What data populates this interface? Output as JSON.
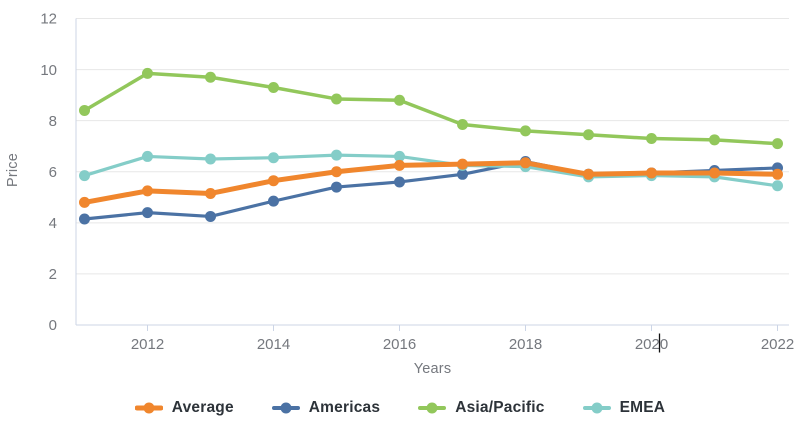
{
  "chart_data": {
    "type": "line",
    "title": "",
    "xlabel": "Years",
    "ylabel": "Price",
    "x": [
      2011,
      2012,
      2013,
      2014,
      2015,
      2016,
      2017,
      2018,
      2019,
      2020,
      2021,
      2022
    ],
    "x_tick_labels": [
      "2012",
      "2014",
      "2016",
      "2018",
      "2020",
      "2022"
    ],
    "yticks": [
      0,
      2,
      4,
      6,
      8,
      10,
      12
    ],
    "ylim": [
      0,
      12
    ],
    "grid": "horizontal",
    "legend_position": "bottom",
    "series": [
      {
        "name": "Average",
        "color": "#f0862d",
        "line_width": 5,
        "values": [
          4.8,
          5.25,
          5.15,
          5.65,
          6.0,
          6.25,
          6.3,
          6.35,
          5.9,
          5.95,
          5.95,
          5.9
        ]
      },
      {
        "name": "Americas",
        "color": "#4b72a4",
        "line_width": 3.2,
        "values": [
          4.15,
          4.4,
          4.25,
          4.85,
          5.4,
          5.6,
          5.9,
          6.4,
          5.9,
          5.95,
          6.05,
          6.15
        ]
      },
      {
        "name": "Asia/Pacific",
        "color": "#92c75b",
        "line_width": 3.5,
        "values": [
          8.4,
          9.85,
          9.7,
          9.3,
          8.85,
          8.8,
          7.85,
          7.6,
          7.45,
          7.3,
          7.25,
          7.1
        ]
      },
      {
        "name": "EMEA",
        "color": "#84cdc8",
        "line_width": 3.2,
        "values": [
          5.85,
          6.6,
          6.5,
          6.55,
          6.65,
          6.6,
          6.25,
          6.2,
          5.8,
          5.85,
          5.8,
          5.45
        ]
      }
    ],
    "text_cursor": {
      "at_tick_label": "2020"
    }
  },
  "colors": {
    "axis_line": "#ccd5e6",
    "gridline": "#e7e7e7",
    "tick_label": "#75787e",
    "legend_text": "#2d3339",
    "cursor": "#111111"
  }
}
